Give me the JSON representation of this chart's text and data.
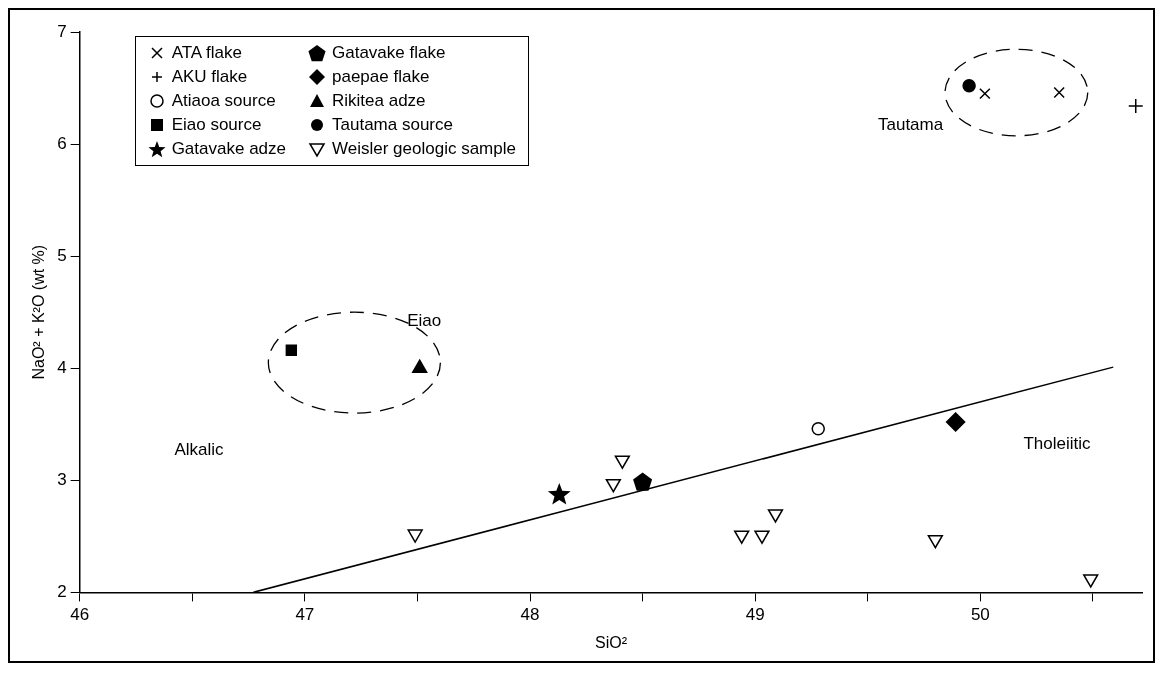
{
  "chart_data": {
    "type": "scatter",
    "xlabel": "SiO²",
    "ylabel": "NaO² + K²O (wt %)",
    "xlim": [
      46,
      50.72
    ],
    "xticks": [
      46,
      {
        "value": 46.5,
        "label": null
      },
      47,
      {
        "value": 47.5,
        "label": null
      },
      48,
      {
        "value": 48.5,
        "label": null
      },
      49,
      {
        "value": 49.5,
        "label": null
      },
      50,
      {
        "value": 50.5,
        "label": null
      }
    ],
    "ylim": [
      2,
      7
    ],
    "yticks": [
      2,
      3,
      4,
      5,
      6,
      7
    ],
    "grid": false,
    "legend": "top left",
    "series": [
      {
        "name": "ATA flake",
        "color": "#000000",
        "marker": "x",
        "x": [
          50.02,
          50.35
        ],
        "values": [
          6.45,
          6.46
        ]
      },
      {
        "name": "AKU flake",
        "color": "#000000",
        "marker": "cross",
        "x": [
          50.69
        ],
        "values": [
          6.34
        ]
      },
      {
        "name": "Atiaoa source",
        "color": "#000000",
        "marker": "circle-open",
        "x": [
          49.28
        ],
        "values": [
          3.46
        ]
      },
      {
        "name": "Eiao source",
        "color": "#000000",
        "marker": "square",
        "x": [
          46.94
        ],
        "values": [
          4.16
        ]
      },
      {
        "name": "Gatavake adze",
        "color": "#000000",
        "marker": "star",
        "x": [
          48.13
        ],
        "values": [
          2.87
        ]
      },
      {
        "name": "Gatavake flake",
        "color": "#000000",
        "x": [
          48.5
        ],
        "values": [
          2.98
        ]
      },
      {
        "name": "paepae flake",
        "color": "#000000",
        "marker": "diamond",
        "x": [
          49.89
        ],
        "values": [
          3.52
        ]
      },
      {
        "name": "Rikitea adze",
        "color": "#000000",
        "marker": "triangle",
        "x": [
          47.51
        ],
        "values": [
          4.0
        ]
      },
      {
        "name": "Tautama source",
        "color": "#000000",
        "marker": "circle",
        "x": [
          49.95
        ],
        "values": [
          6.52
        ]
      },
      {
        "name": "Weisler geologic sample",
        "color": "#000000",
        "marker": "triangle-down-open",
        "x": [
          47.49,
          48.37,
          48.41,
          48.94,
          49.03,
          49.09,
          49.8,
          50.49
        ],
        "values": [
          2.52,
          2.97,
          3.18,
          2.51,
          2.51,
          2.7,
          2.47,
          2.12
        ]
      },
      {
        "type": "line",
        "color": "#000000",
        "marker": "none",
        "x": [
          46.77,
          50.59
        ],
        "values": [
          2,
          4.01
        ]
      }
    ],
    "annotations": [
      "Eiao",
      "Tautama",
      "Alkalic",
      "Tholeiitic"
    ]
  }
}
